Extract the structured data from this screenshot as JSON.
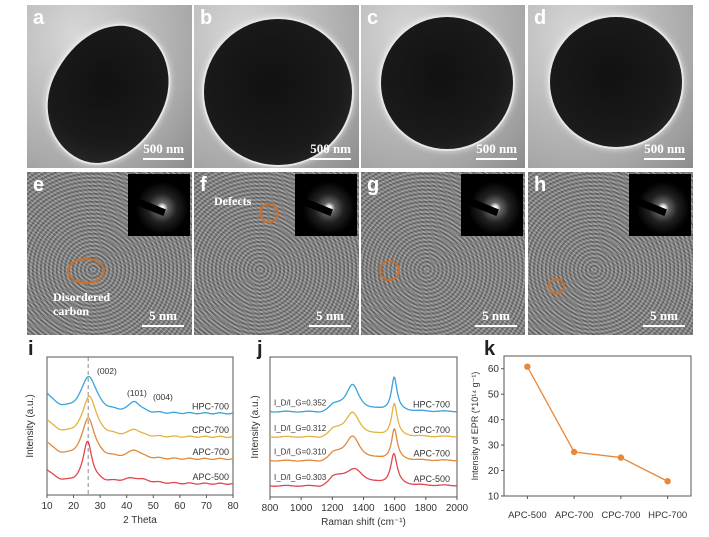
{
  "panels": {
    "a": {
      "label": "a",
      "scale": "500 nm"
    },
    "b": {
      "label": "b",
      "scale": "500 nm"
    },
    "c": {
      "label": "c",
      "scale": "500 nm"
    },
    "d": {
      "label": "d",
      "scale": "500 nm"
    },
    "e": {
      "label": "e",
      "scale": "5 nm",
      "annotation": "Disordered carbon"
    },
    "f": {
      "label": "f",
      "scale": "5 nm",
      "annotation": "Defects"
    },
    "g": {
      "label": "g",
      "scale": "5 nm"
    },
    "h": {
      "label": "h",
      "scale": "5 nm"
    }
  },
  "colors": {
    "HPC-700": "#3aa3dc",
    "CPC-700": "#e3b341",
    "APC-700": "#e08a3c",
    "APC-500": "#e0474f",
    "epr": "#e8883a"
  },
  "chart_data": [
    {
      "panel": "i",
      "type": "line",
      "title": "",
      "xlabel": "2 Theta",
      "ylabel": "Intensity (a.u.)",
      "xlim": [
        10,
        80
      ],
      "xticks": [
        10,
        20,
        30,
        40,
        50,
        60,
        70,
        80
      ],
      "ylim": [
        0,
        10
      ],
      "reference_line": 25.5,
      "annotations": [
        "(002)",
        "(101)",
        "(004)"
      ],
      "series": [
        {
          "name": "HPC-700",
          "offset": 5.9,
          "peaks": [
            {
              "center": 25.8,
              "height": 2.6,
              "width": 3.5
            },
            {
              "center": 43,
              "height": 0.8,
              "width": 2.5
            }
          ],
          "lowangle": 1.4
        },
        {
          "name": "CPC-700",
          "offset": 4.2,
          "peaks": [
            {
              "center": 26,
              "height": 2.9,
              "width": 3
            },
            {
              "center": 43,
              "height": 0.5,
              "width": 2.5
            }
          ],
          "lowangle": 1.2
        },
        {
          "name": "APC-700",
          "offset": 2.6,
          "peaks": [
            {
              "center": 25.6,
              "height": 2.9,
              "width": 2.8
            },
            {
              "center": 43,
              "height": 0.6,
              "width": 3
            }
          ],
          "lowangle": 1.2
        },
        {
          "name": "APC-500",
          "offset": 0.8,
          "peaks": [
            {
              "center": 25.3,
              "height": 3.0,
              "width": 2
            },
            {
              "center": 43,
              "height": 0.4,
              "width": 6
            }
          ],
          "lowangle": 1.0
        }
      ]
    },
    {
      "panel": "j",
      "type": "line",
      "title": "",
      "xlabel": "Raman shift (cm⁻¹)",
      "ylabel": "Intensity (a.u.)",
      "xlim": [
        800,
        2000
      ],
      "xticks": [
        800,
        1000,
        1200,
        1400,
        1600,
        1800,
        2000
      ],
      "ylim": [
        0,
        10
      ],
      "series": [
        {
          "name": "HPC-700",
          "ratio": "I_D/I_G=0.352",
          "offset": 6.1,
          "peaks": [
            {
              "center": 1330,
              "height": 1.8,
              "width": 50
            },
            {
              "center": 1597,
              "height": 2.4,
              "width": 22
            },
            {
              "center": 1220,
              "height": 0.35,
              "width": 70
            }
          ]
        },
        {
          "name": "CPC-700",
          "ratio": "I_D/I_G=0.312",
          "offset": 4.3,
          "peaks": [
            {
              "center": 1330,
              "height": 1.6,
              "width": 55
            },
            {
              "center": 1598,
              "height": 2.3,
              "width": 22
            },
            {
              "center": 1220,
              "height": 0.4,
              "width": 70
            }
          ]
        },
        {
          "name": "APC-700",
          "ratio": "I_D/I_G=0.310",
          "offset": 2.6,
          "peaks": [
            {
              "center": 1330,
              "height": 1.6,
              "width": 55
            },
            {
              "center": 1598,
              "height": 2.2,
              "width": 22
            },
            {
              "center": 1220,
              "height": 0.4,
              "width": 70
            }
          ]
        },
        {
          "name": "APC-500",
          "ratio": "I_D/I_G=0.303",
          "offset": 0.8,
          "peaks": [
            {
              "center": 1345,
              "height": 1.0,
              "width": 70
            },
            {
              "center": 1595,
              "height": 2.2,
              "width": 25
            },
            {
              "center": 1230,
              "height": 0.55,
              "width": 80
            }
          ]
        }
      ]
    },
    {
      "panel": "k",
      "type": "line",
      "title": "",
      "xlabel": "",
      "ylabel": "Intensity of EPR (*10¹⁴ g⁻¹)",
      "categories": [
        "APC-500",
        "APC-700",
        "CPC-700",
        "HPC-700"
      ],
      "values": [
        60.8,
        27.3,
        25.1,
        15.8
      ],
      "ylim": [
        10,
        65
      ],
      "yticks": [
        10,
        20,
        30,
        40,
        50,
        60
      ]
    }
  ]
}
